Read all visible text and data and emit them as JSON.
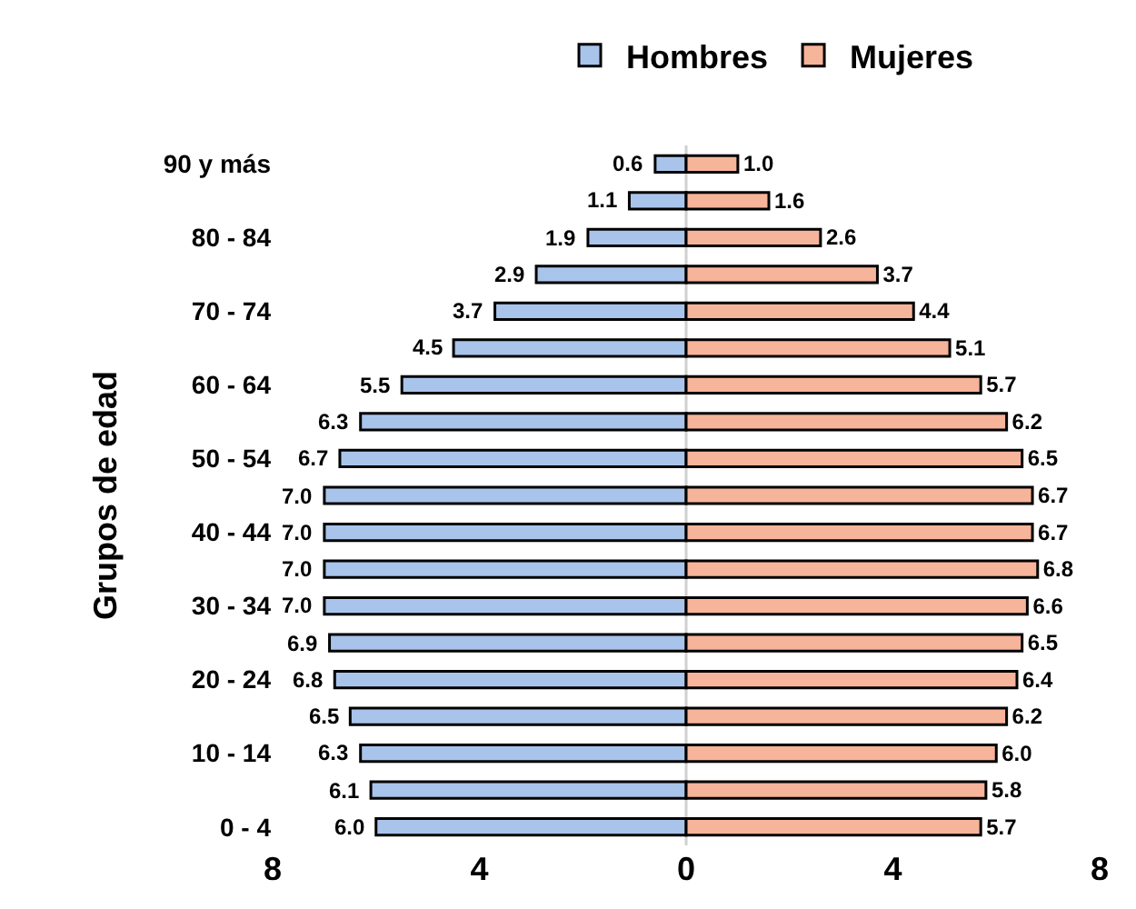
{
  "chart_data": {
    "type": "bar",
    "orientation": "horizontal",
    "ylabel": "Grupos de edad",
    "categories": [
      "90 y más",
      null,
      "80 - 84",
      null,
      "70 - 74",
      null,
      "60 - 64",
      null,
      "50 - 54",
      null,
      "40 - 44",
      null,
      "30 - 34",
      null,
      "20 - 24",
      null,
      "10 - 14",
      null,
      "0 - 4"
    ],
    "series": [
      {
        "name": "Hombres",
        "color": "#a9c4eb",
        "values": [
          0.6,
          1.1,
          1.9,
          2.9,
          3.7,
          4.5,
          5.5,
          6.3,
          6.7,
          7.0,
          7.0,
          7.0,
          7.0,
          6.9,
          6.8,
          6.5,
          6.3,
          6.1,
          6.0
        ],
        "base": [
          -0.6,
          -1.1,
          -1.9,
          -2.9,
          -3.7,
          -4.5,
          -5.5,
          -6.3,
          -6.7,
          -7.0,
          -7.0,
          -7.0,
          -7.0,
          -6.9,
          -6.8,
          -6.5,
          -6.3,
          -6.1,
          -6.0
        ],
        "value_labels": [
          "0.6",
          "1.1",
          "1.9",
          "2.9",
          "3.7",
          "4.5",
          "5.5",
          "6.3",
          "6.7",
          "7.0",
          "7.0",
          "7.0",
          "7.0",
          "6.9",
          "6.8",
          "6.5",
          "6.3",
          "6.1",
          "6.0"
        ]
      },
      {
        "name": "Mujeres",
        "color": "#f6b49b",
        "values": [
          1.0,
          1.6,
          2.6,
          3.7,
          4.4,
          5.1,
          5.7,
          6.2,
          6.5,
          6.7,
          6.7,
          6.8,
          6.6,
          6.5,
          6.4,
          6.2,
          6.0,
          5.8,
          5.7
        ],
        "value_labels": [
          "1.0",
          "1.6",
          "2.6",
          "3.7",
          "4.4",
          "5.1",
          "5.7",
          "6.2",
          "6.5",
          "6.7",
          "6.7",
          "6.8",
          "6.6",
          "6.5",
          "6.4",
          "6.2",
          "6.0",
          "5.8",
          "5.7"
        ]
      }
    ],
    "xlim": [
      -8,
      8
    ],
    "xticks": [
      {
        "value": -8,
        "label": "8"
      },
      {
        "value": -4,
        "label": "4"
      },
      0,
      4,
      8
    ],
    "ref_lines": [
      {
        "axis": "x",
        "value": 0,
        "color": "#d0d0d0"
      }
    ],
    "grid": false,
    "legend": "top"
  }
}
